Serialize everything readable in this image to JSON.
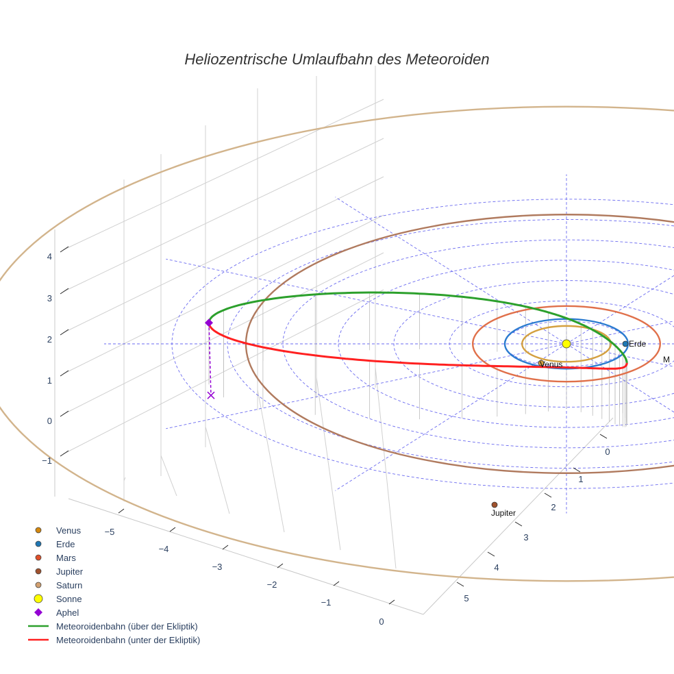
{
  "chart_data": {
    "type": "3d-line-scatter",
    "title": "Heliozentrische Umlaufbahn des Meteoroiden",
    "xlabel": "",
    "ylabel": "",
    "zlabel": "",
    "x_ticks": [
      "−5",
      "−4",
      "−3",
      "−2",
      "−1",
      "0"
    ],
    "y_ticks": [
      "0",
      "1",
      "2",
      "3",
      "4",
      "5"
    ],
    "z_ticks": [
      "−1",
      "0",
      "1",
      "2",
      "3",
      "4"
    ],
    "grid": true,
    "legend_position": "bottom-left",
    "planet_orbits": [
      {
        "name": "Venus",
        "radius_au": 0.72,
        "color": "#d4a040"
      },
      {
        "name": "Erde",
        "radius_au": 1.0,
        "color": "#2b7bd0"
      },
      {
        "name": "Mars",
        "radius_au": 1.52,
        "color": "#e0704a"
      },
      {
        "name": "Jupiter",
        "radius_au": 5.2,
        "color": "#b07a5e"
      },
      {
        "name": "Saturn",
        "radius_au": 9.54,
        "color": "#d2b48c"
      }
    ],
    "meteoroid_orbit": {
      "perihelion_au": 0.98,
      "aphelion_au": 5.8,
      "aphelion_height_au": 2.2,
      "above_label": "Meteoroidenbahn (über der Ekliptik)",
      "below_label": "Meteoroidenbahn (unter der Ekliptik)",
      "above_color": "#2ca02c",
      "below_color": "#ff2020"
    },
    "points": [
      {
        "name": "Venus",
        "label": "Venus",
        "color": "#d4a040"
      },
      {
        "name": "Erde",
        "label": "Erde",
        "color": "#1f77b4"
      },
      {
        "name": "Mars",
        "label": "M",
        "color": "#e0704a"
      },
      {
        "name": "Jupiter",
        "label": "Jupiter",
        "color": "#a0522d"
      },
      {
        "name": "Sonne",
        "label": "",
        "color": "#ffff00"
      },
      {
        "name": "Aphel",
        "label": "",
        "color": "#9400d3"
      }
    ]
  },
  "legend": [
    {
      "label": "Venus",
      "symbol": "circle",
      "color": "#d4880f"
    },
    {
      "label": "Erde",
      "symbol": "circle",
      "color": "#1f77b4"
    },
    {
      "label": "Mars",
      "symbol": "circle",
      "color": "#e0502a"
    },
    {
      "label": "Jupiter",
      "symbol": "circle",
      "color": "#a0522d"
    },
    {
      "label": "Saturn",
      "symbol": "circle",
      "color": "#d2a070"
    },
    {
      "label": "Sonne",
      "symbol": "big-circle",
      "color": "#ffff00"
    },
    {
      "label": "Aphel",
      "symbol": "diamond",
      "color": "#9400d3"
    },
    {
      "label": "Meteoroidenbahn (über der Ekliptik)",
      "symbol": "line",
      "color": "#2ca02c"
    },
    {
      "label": "Meteoroidenbahn (unter der Ekliptik)",
      "symbol": "line",
      "color": "#ff2020"
    }
  ]
}
